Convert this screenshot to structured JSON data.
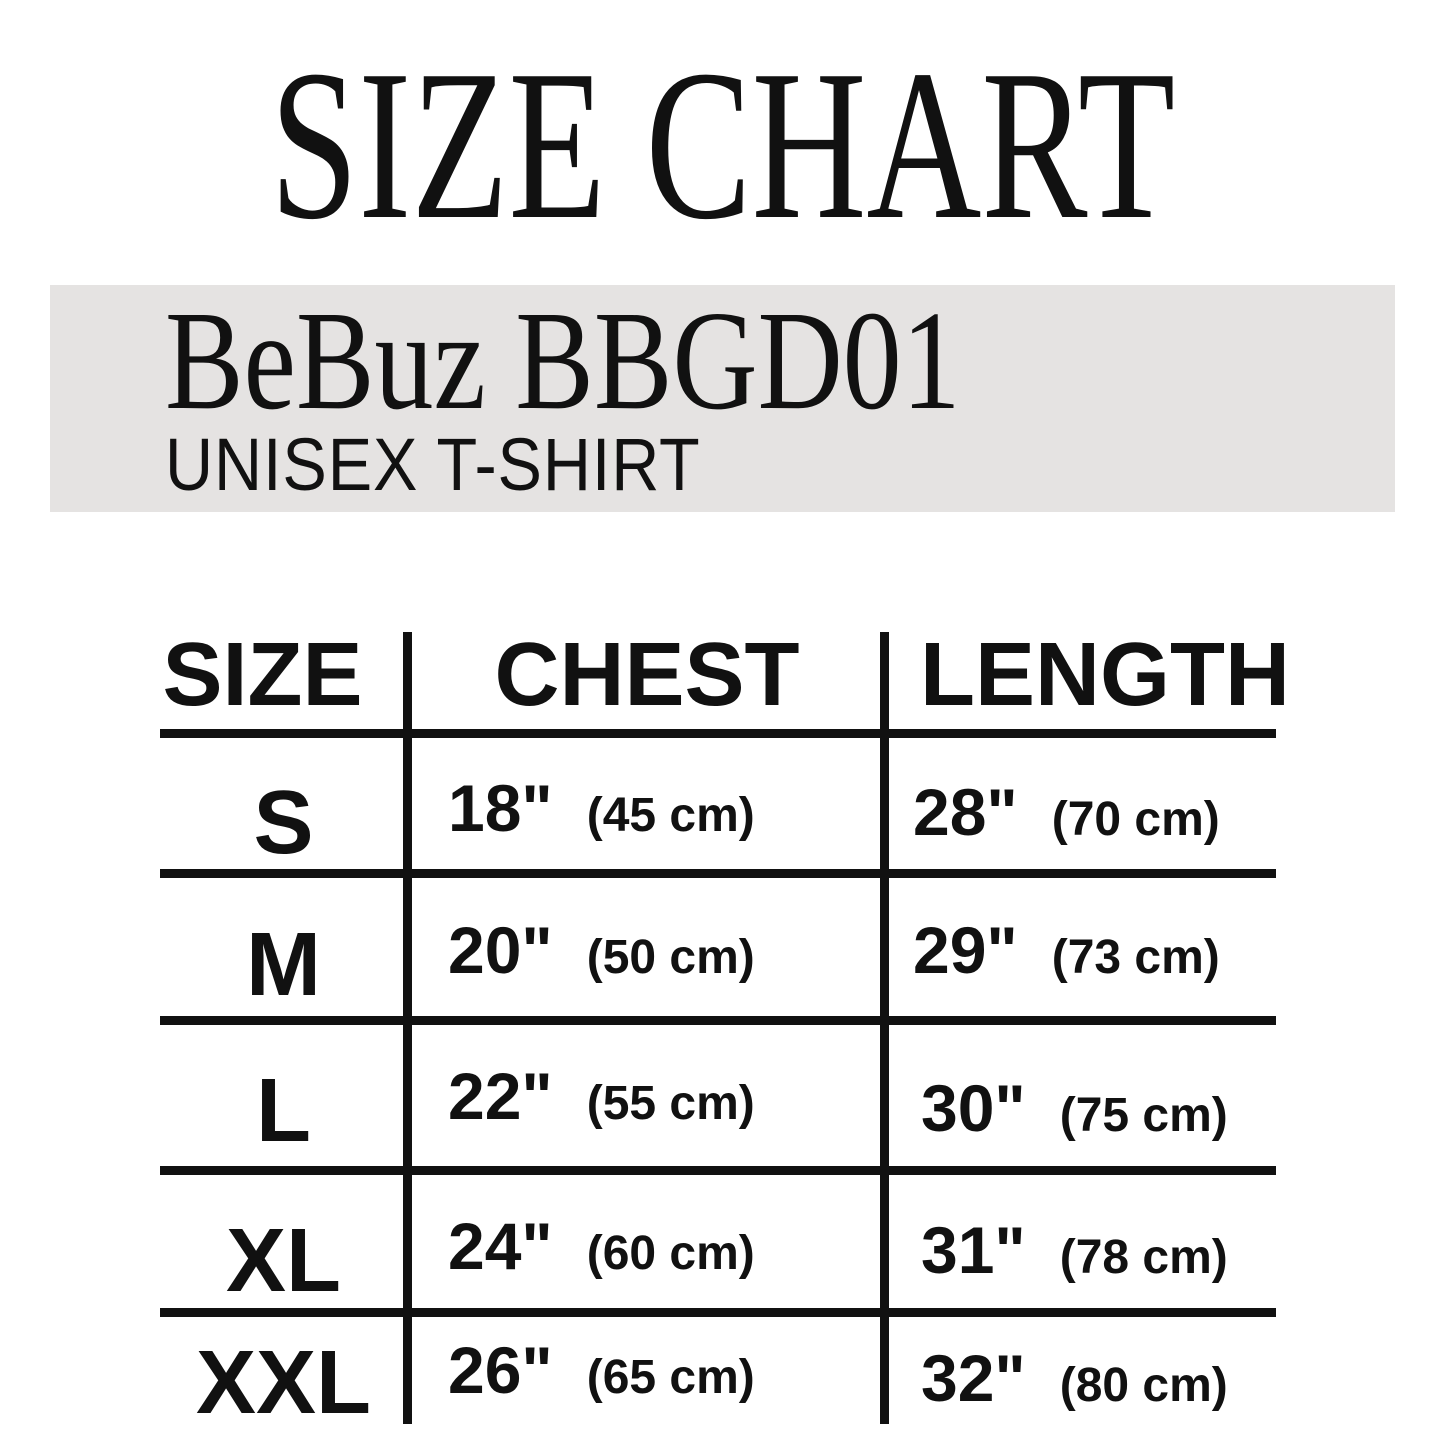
{
  "title": "SIZE CHART",
  "product": "BeBuz BBGD01",
  "subtitle": "UNISEX T-SHIRT",
  "band_color": "#e5e3e2",
  "table": {
    "headers": [
      "SIZE",
      "CHEST",
      "LENGTH"
    ],
    "rows": [
      {
        "size": "S",
        "chest_in": "18\"",
        "chest_cm": "(45 cm)",
        "length_in": "28\"",
        "length_cm": "(70 cm)"
      },
      {
        "size": "M",
        "chest_in": "20\"",
        "chest_cm": "(50 cm)",
        "length_in": "29\"",
        "length_cm": "(73 cm)"
      },
      {
        "size": "L",
        "chest_in": "22\"",
        "chest_cm": "(55 cm)",
        "length_in": "30\"",
        "length_cm": "(75 cm)"
      },
      {
        "size": "XL",
        "chest_in": "24\"",
        "chest_cm": "(60 cm)",
        "length_in": "31\"",
        "length_cm": "(78 cm)"
      },
      {
        "size": "XXL",
        "chest_in": "26\"",
        "chest_cm": "(65 cm)",
        "length_in": "32\"",
        "length_cm": "(80 cm)"
      }
    ]
  }
}
